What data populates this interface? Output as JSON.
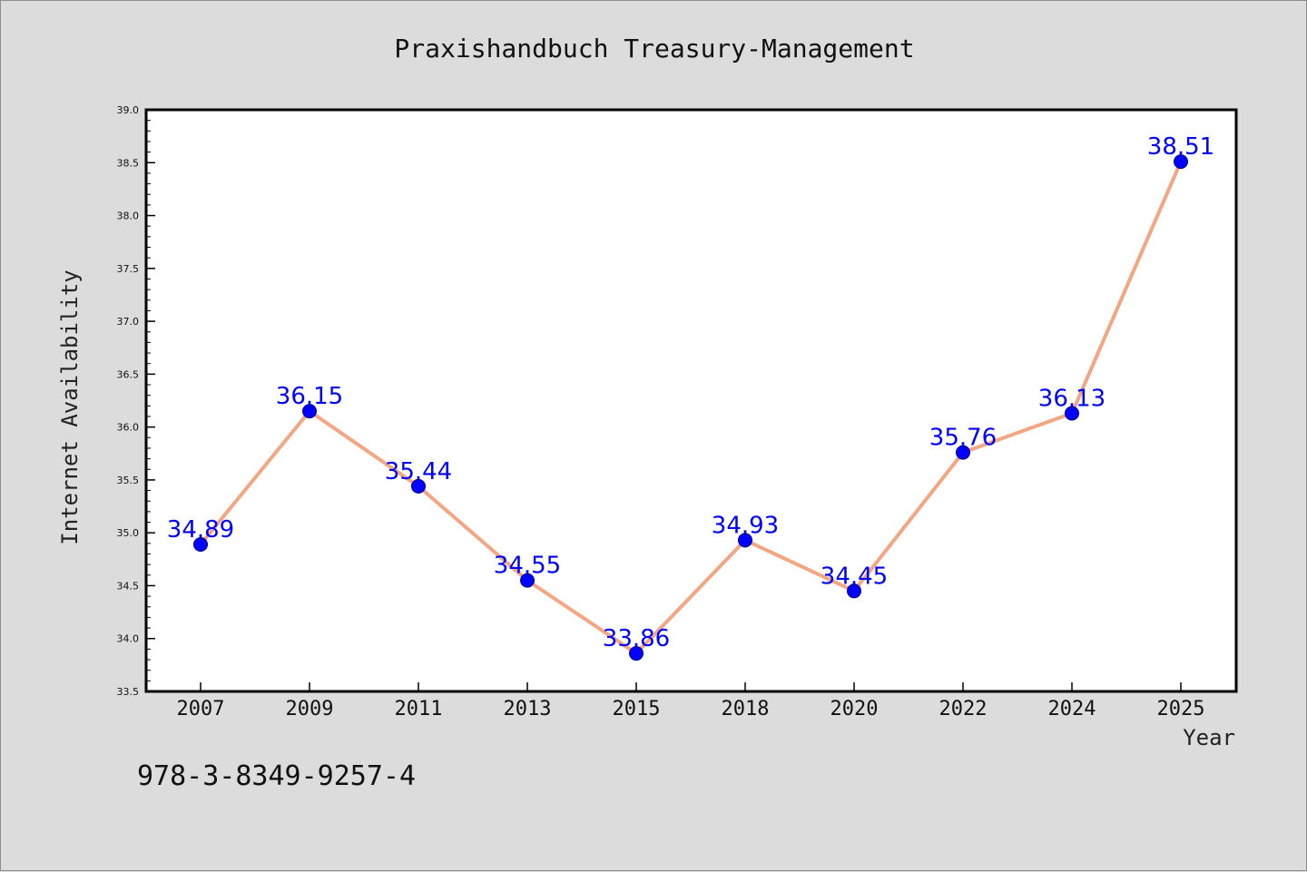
{
  "figure": {
    "title": "Praxishandbuch Treasury-Management",
    "footer_text": "978-3-8349-9257-4"
  },
  "chart_data": {
    "type": "line",
    "title": "Praxishandbuch Treasury-Management",
    "xlabel": "Year",
    "ylabel": "Internet Availability",
    "categories": [
      "2007",
      "2009",
      "2011",
      "2013",
      "2015",
      "2018",
      "2020",
      "2022",
      "2024",
      "2025"
    ],
    "series": [
      {
        "values": [
          34.89,
          36.15,
          35.44,
          34.55,
          33.86,
          34.93,
          34.45,
          35.76,
          36.13,
          38.51
        ],
        "data_labels": [
          "34.89",
          "36.15",
          "35.44",
          "34.55",
          "33.86",
          "34.93",
          "34.45",
          "35.76",
          "36.13",
          "38.51"
        ]
      }
    ],
    "ylim": [
      33.5,
      39.0
    ],
    "yticks": [
      33.5,
      34.0,
      34.5,
      35.0,
      35.5,
      36.0,
      36.5,
      37.0,
      37.5,
      38.0,
      38.5,
      39.0
    ],
    "ytick_labels": [
      "33.5",
      "34.0",
      "34.5",
      "35.0",
      "35.5",
      "36.0",
      "36.5",
      "37.0",
      "37.5",
      "38.0",
      "38.5",
      "39.0"
    ],
    "grid": false,
    "legend": "none",
    "colors": {
      "line": "#f4a582",
      "marker": "#0000ff",
      "marker_edge": "#000080",
      "data_label": "#0000ff",
      "plot_background": "#ffffff",
      "figure_background": "#dcdcdc"
    }
  }
}
